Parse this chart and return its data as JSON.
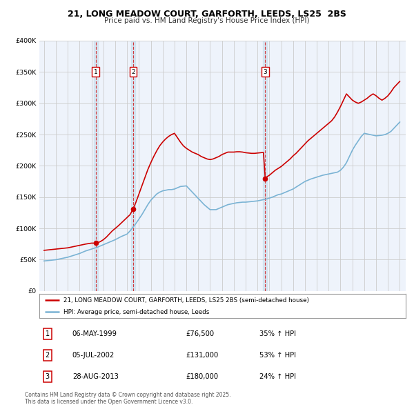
{
  "title": "21, LONG MEADOW COURT, GARFORTH, LEEDS, LS25  2BS",
  "subtitle": "Price paid vs. HM Land Registry's House Price Index (HPI)",
  "ylim": [
    0,
    400000
  ],
  "yticks": [
    0,
    50000,
    100000,
    150000,
    200000,
    250000,
    300000,
    350000,
    400000
  ],
  "ytick_labels": [
    "£0",
    "£50K",
    "£100K",
    "£150K",
    "£200K",
    "£250K",
    "£300K",
    "£350K",
    "£400K"
  ],
  "xlim_start": 1994.6,
  "xlim_end": 2025.5,
  "xticks": [
    1995,
    1996,
    1997,
    1998,
    1999,
    2000,
    2001,
    2002,
    2003,
    2004,
    2005,
    2006,
    2007,
    2008,
    2009,
    2010,
    2011,
    2012,
    2013,
    2014,
    2015,
    2016,
    2017,
    2018,
    2019,
    2020,
    2021,
    2022,
    2023,
    2024,
    2025
  ],
  "hpi_color": "#7ab3d4",
  "price_color": "#cc0000",
  "vline_color": "#cc0000",
  "grid_color": "#cccccc",
  "background_color": "#eef3fb",
  "transactions": [
    {
      "label": "1",
      "date_x": 1999.35,
      "price": 76500,
      "date_str": "06-MAY-1999",
      "price_str": "£76,500",
      "pct_str": "35% ↑ HPI"
    },
    {
      "label": "2",
      "date_x": 2002.51,
      "price": 131000,
      "date_str": "05-JUL-2002",
      "price_str": "£131,000",
      "pct_str": "53% ↑ HPI"
    },
    {
      "label": "3",
      "date_x": 2013.65,
      "price": 180000,
      "date_str": "28-AUG-2013",
      "price_str": "£180,000",
      "pct_str": "24% ↑ HPI"
    }
  ],
  "legend_line1": "21, LONG MEADOW COURT, GARFORTH, LEEDS, LS25 2BS (semi-detached house)",
  "legend_line2": "HPI: Average price, semi-detached house, Leeds",
  "footnote": "Contains HM Land Registry data © Crown copyright and database right 2025.\nThis data is licensed under the Open Government Licence v3.0.",
  "hpi_data_years": [
    1995.0,
    1995.25,
    1995.5,
    1995.75,
    1996.0,
    1996.25,
    1996.5,
    1996.75,
    1997.0,
    1997.25,
    1997.5,
    1997.75,
    1998.0,
    1998.25,
    1998.5,
    1998.75,
    1999.0,
    1999.25,
    1999.5,
    1999.75,
    2000.0,
    2000.25,
    2000.5,
    2000.75,
    2001.0,
    2001.25,
    2001.5,
    2001.75,
    2002.0,
    2002.25,
    2002.5,
    2002.75,
    2003.0,
    2003.25,
    2003.5,
    2003.75,
    2004.0,
    2004.25,
    2004.5,
    2004.75,
    2005.0,
    2005.25,
    2005.5,
    2005.75,
    2006.0,
    2006.25,
    2006.5,
    2006.75,
    2007.0,
    2007.25,
    2007.5,
    2007.75,
    2008.0,
    2008.25,
    2008.5,
    2008.75,
    2009.0,
    2009.25,
    2009.5,
    2009.75,
    2010.0,
    2010.25,
    2010.5,
    2010.75,
    2011.0,
    2011.25,
    2011.5,
    2011.75,
    2012.0,
    2012.25,
    2012.5,
    2012.75,
    2013.0,
    2013.25,
    2013.5,
    2013.75,
    2014.0,
    2014.25,
    2014.5,
    2014.75,
    2015.0,
    2015.25,
    2015.5,
    2015.75,
    2016.0,
    2016.25,
    2016.5,
    2016.75,
    2017.0,
    2017.25,
    2017.5,
    2017.75,
    2018.0,
    2018.25,
    2018.5,
    2018.75,
    2019.0,
    2019.25,
    2019.5,
    2019.75,
    2020.0,
    2020.25,
    2020.5,
    2020.75,
    2021.0,
    2021.25,
    2021.5,
    2021.75,
    2022.0,
    2022.25,
    2022.5,
    2022.75,
    2023.0,
    2023.25,
    2023.5,
    2023.75,
    2024.0,
    2024.25,
    2024.5,
    2024.75,
    2025.0
  ],
  "hpi_data_values": [
    48000,
    48500,
    49000,
    49500,
    50000,
    51000,
    52000,
    53000,
    54000,
    55500,
    57000,
    58500,
    60000,
    62000,
    64000,
    65500,
    67000,
    68500,
    70000,
    72000,
    74000,
    76000,
    78000,
    80000,
    82000,
    84500,
    87000,
    89000,
    91000,
    96000,
    102000,
    108000,
    115000,
    122000,
    130000,
    138000,
    145000,
    150000,
    155000,
    158000,
    160000,
    161000,
    162000,
    162000,
    163000,
    165000,
    167000,
    167500,
    168000,
    163000,
    158000,
    153000,
    148000,
    143000,
    138000,
    134000,
    130000,
    130000,
    130000,
    132000,
    134000,
    136000,
    138000,
    139000,
    140000,
    141000,
    141500,
    142000,
    142000,
    142500,
    143000,
    143500,
    144000,
    145000,
    146000,
    147000,
    148500,
    150000,
    152000,
    154000,
    155000,
    157000,
    159000,
    161000,
    163000,
    166000,
    169000,
    172000,
    175000,
    177000,
    179000,
    180500,
    182000,
    183500,
    185000,
    186000,
    187000,
    188000,
    189000,
    190000,
    193000,
    198000,
    205000,
    215000,
    225000,
    233000,
    240000,
    247000,
    252000,
    251000,
    250000,
    249000,
    248000,
    248500,
    249000,
    250000,
    252000,
    255000,
    260000,
    265000,
    270000
  ],
  "price_data_years": [
    1995.0,
    1995.25,
    1995.5,
    1995.75,
    1996.0,
    1996.25,
    1996.5,
    1996.75,
    1997.0,
    1997.25,
    1997.5,
    1997.75,
    1998.0,
    1998.25,
    1998.5,
    1998.75,
    1999.0,
    1999.25,
    1999.35,
    1999.5,
    1999.75,
    2000.0,
    2000.25,
    2000.5,
    2000.75,
    2001.0,
    2001.25,
    2001.5,
    2001.75,
    2002.0,
    2002.25,
    2002.51,
    2002.75,
    2003.0,
    2003.25,
    2003.5,
    2003.75,
    2004.0,
    2004.25,
    2004.5,
    2004.75,
    2005.0,
    2005.25,
    2005.5,
    2005.75,
    2006.0,
    2006.25,
    2006.5,
    2006.75,
    2007.0,
    2007.25,
    2007.5,
    2007.75,
    2008.0,
    2008.25,
    2008.5,
    2008.75,
    2009.0,
    2009.25,
    2009.5,
    2009.75,
    2010.0,
    2010.25,
    2010.5,
    2010.75,
    2011.0,
    2011.25,
    2011.5,
    2011.75,
    2012.0,
    2012.25,
    2012.5,
    2012.75,
    2013.0,
    2013.25,
    2013.5,
    2013.65,
    2013.75,
    2014.0,
    2014.25,
    2014.5,
    2014.75,
    2015.0,
    2015.25,
    2015.5,
    2015.75,
    2016.0,
    2016.25,
    2016.5,
    2016.75,
    2017.0,
    2017.25,
    2017.5,
    2017.75,
    2018.0,
    2018.25,
    2018.5,
    2018.75,
    2019.0,
    2019.25,
    2019.5,
    2019.75,
    2020.0,
    2020.25,
    2020.5,
    2020.75,
    2021.0,
    2021.25,
    2021.5,
    2021.75,
    2022.0,
    2022.25,
    2022.5,
    2022.75,
    2023.0,
    2023.25,
    2023.5,
    2023.75,
    2024.0,
    2024.25,
    2024.5,
    2024.75,
    2025.0
  ],
  "price_data_values": [
    65000,
    65500,
    66000,
    66500,
    67000,
    67500,
    68000,
    68500,
    69000,
    70000,
    71000,
    72000,
    73000,
    74000,
    75000,
    75800,
    76500,
    76500,
    76500,
    77000,
    79000,
    82000,
    86000,
    91000,
    96000,
    100000,
    104000,
    108500,
    113000,
    117500,
    122000,
    131000,
    142000,
    155000,
    168000,
    181000,
    194000,
    205000,
    215000,
    224000,
    232000,
    238000,
    243000,
    247000,
    250000,
    252000,
    245000,
    238000,
    232000,
    228000,
    225000,
    222000,
    220000,
    218000,
    215000,
    213000,
    211000,
    210000,
    211000,
    213000,
    215000,
    218000,
    220000,
    222000,
    222000,
    222000,
    222500,
    222500,
    222000,
    221000,
    220500,
    220000,
    220000,
    220500,
    221000,
    221500,
    180000,
    182000,
    185000,
    189000,
    193000,
    196000,
    199000,
    203000,
    207000,
    211000,
    216000,
    220000,
    225000,
    230000,
    235000,
    240000,
    244000,
    248000,
    252000,
    256000,
    260000,
    264000,
    268000,
    272000,
    278000,
    286000,
    295000,
    305000,
    315000,
    310000,
    305000,
    302000,
    300000,
    302000,
    305000,
    308000,
    312000,
    315000,
    312000,
    308000,
    305000,
    308000,
    312000,
    318000,
    325000,
    330000,
    335000
  ]
}
